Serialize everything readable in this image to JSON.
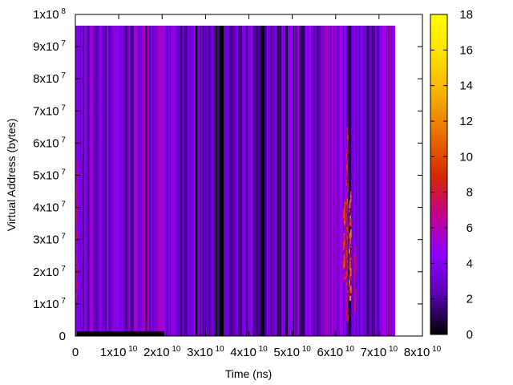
{
  "chart_data": {
    "type": "heatmap",
    "xlabel": "Time (ns)",
    "ylabel": "Virtual Address (bytes)",
    "xlim": [
      0,
      80000000000
    ],
    "ylim": [
      0,
      100000000
    ],
    "x_data_extent": [
      0,
      73500000000
    ],
    "y_data_extent": [
      0,
      96500000
    ],
    "x_ticks": [
      {
        "value": 0,
        "base": "0",
        "exp": ""
      },
      {
        "value": 10000000000,
        "base": "1x10",
        "exp": "10"
      },
      {
        "value": 20000000000,
        "base": "2x10",
        "exp": "10"
      },
      {
        "value": 30000000000,
        "base": "3x10",
        "exp": "10"
      },
      {
        "value": 40000000000,
        "base": "4x10",
        "exp": "10"
      },
      {
        "value": 50000000000,
        "base": "5x10",
        "exp": "10"
      },
      {
        "value": 60000000000,
        "base": "6x10",
        "exp": "10"
      },
      {
        "value": 70000000000,
        "base": "7x10",
        "exp": "10"
      },
      {
        "value": 80000000000,
        "base": "8x10",
        "exp": "10"
      }
    ],
    "y_ticks": [
      {
        "value": 0,
        "base": "0",
        "exp": ""
      },
      {
        "value": 10000000,
        "base": "1x10",
        "exp": "7"
      },
      {
        "value": 20000000,
        "base": "2x10",
        "exp": "7"
      },
      {
        "value": 30000000,
        "base": "3x10",
        "exp": "7"
      },
      {
        "value": 40000000,
        "base": "4x10",
        "exp": "7"
      },
      {
        "value": 50000000,
        "base": "5x10",
        "exp": "7"
      },
      {
        "value": 60000000,
        "base": "6x10",
        "exp": "7"
      },
      {
        "value": 70000000,
        "base": "7x10",
        "exp": "7"
      },
      {
        "value": 80000000,
        "base": "8x10",
        "exp": "7"
      },
      {
        "value": 90000000,
        "base": "9x10",
        "exp": "7"
      },
      {
        "value": 100000000,
        "base": "1x10",
        "exp": "8"
      }
    ],
    "colorbar": {
      "range": [
        0,
        18
      ],
      "ticks": [
        "0",
        "2",
        "4",
        "6",
        "8",
        "10",
        "12",
        "14",
        "16",
        "18"
      ],
      "palette": "black-purple-red-orange-yellow",
      "stops": [
        "#000000",
        "#5a00b4",
        "#9000ff",
        "#c2008a",
        "#d52b00",
        "#e87000",
        "#f5b000",
        "#ffe000",
        "#ffff00"
      ]
    },
    "bands": [
      {
        "x0": 0,
        "x1": 2000000000,
        "value": 3
      },
      {
        "x0": 2000000000,
        "x1": 11000000000,
        "value": 4
      },
      {
        "x0": 11000000000,
        "x1": 21000000000,
        "value": 4
      },
      {
        "x0": 21000000000,
        "x1": 29000000000,
        "value": 3
      },
      {
        "x0": 29000000000,
        "x1": 40000000000,
        "value": 2
      },
      {
        "x0": 40000000000,
        "x1": 48000000000,
        "value": 3
      },
      {
        "x0": 48000000000,
        "x1": 56000000000,
        "value": 3
      },
      {
        "x0": 56000000000,
        "x1": 62000000000,
        "value": 4
      },
      {
        "x0": 62000000000,
        "x1": 68000000000,
        "value": 3
      },
      {
        "x0": 68000000000,
        "x1": 73500000000,
        "value": 4
      }
    ],
    "hotspots": [
      {
        "x": 62500000000,
        "y0": 5000000,
        "y1": 65000000,
        "value": 9
      },
      {
        "x": 63200000000,
        "y0": 12000000,
        "y1": 45000000,
        "value": 12
      },
      {
        "x": 61900000000,
        "y0": 18000000,
        "y1": 42000000,
        "value": 10
      },
      {
        "x": 64300000000,
        "y0": 8000000,
        "y1": 28000000,
        "value": 8
      },
      {
        "x": 200000000,
        "y0": 13000000,
        "y1": 55000000,
        "value": 7
      }
    ],
    "grid": false,
    "legend": "colorbar-right"
  }
}
